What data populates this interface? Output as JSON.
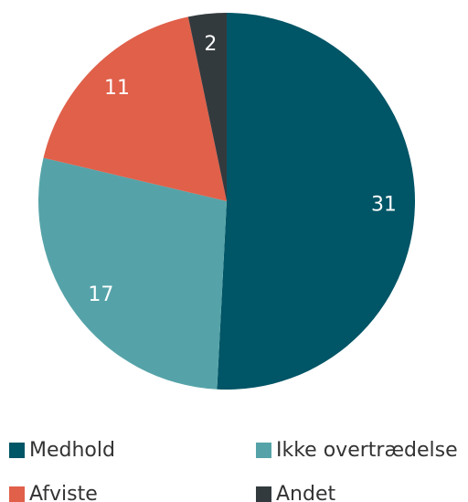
{
  "chart_data": {
    "type": "pie",
    "categories": [
      "Medhold",
      "Ikke overtrædelse",
      "Afviste",
      "Andet"
    ],
    "values": [
      31,
      17,
      11,
      2
    ],
    "colors": [
      "#005566",
      "#55a3a8",
      "#e0604a",
      "#333a3e"
    ]
  }
}
